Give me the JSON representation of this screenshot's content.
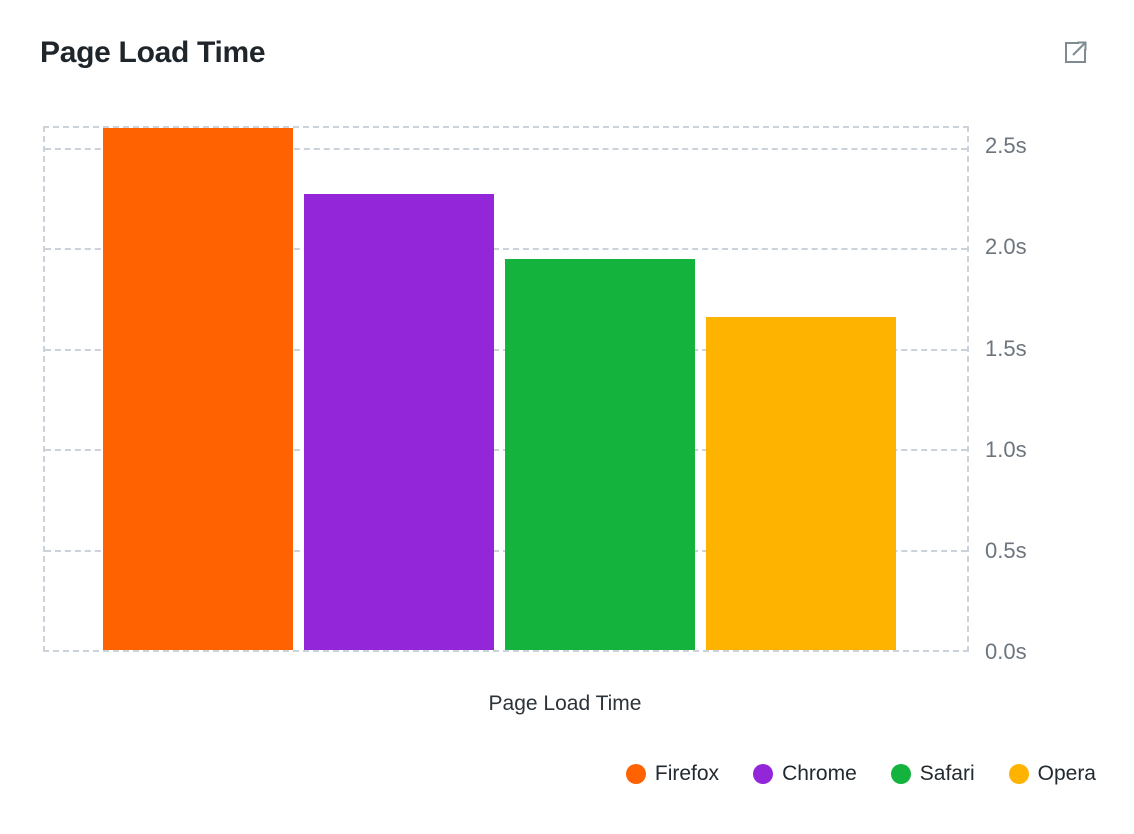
{
  "header": {
    "title": "Page Load Time",
    "external_link_icon": "external-link-icon"
  },
  "chart_data": {
    "type": "bar",
    "title": "Page Load Time",
    "categories": [
      "Firefox",
      "Chrome",
      "Safari",
      "Opera"
    ],
    "values": [
      2.6,
      2.27,
      1.95,
      1.66
    ],
    "unit": "s",
    "colors": [
      "#ff6200",
      "#9326d9",
      "#13b33d",
      "#feb301"
    ],
    "xlabel": "Page Load Time",
    "ylabel": "",
    "ylim": [
      0,
      2.6
    ],
    "yticks": [
      {
        "value": 2.5,
        "label": "2.5s"
      },
      {
        "value": 2.0,
        "label": "2.0s"
      },
      {
        "value": 1.5,
        "label": "1.5s"
      },
      {
        "value": 1.0,
        "label": "1.0s"
      },
      {
        "value": 0.5,
        "label": "0.5s"
      },
      {
        "value": 0.0,
        "label": "0.0s"
      }
    ],
    "grid": "horizontal-dashed",
    "legend_position": "bottom-right",
    "legend": [
      "Firefox",
      "Chrome",
      "Safari",
      "Opera"
    ]
  }
}
